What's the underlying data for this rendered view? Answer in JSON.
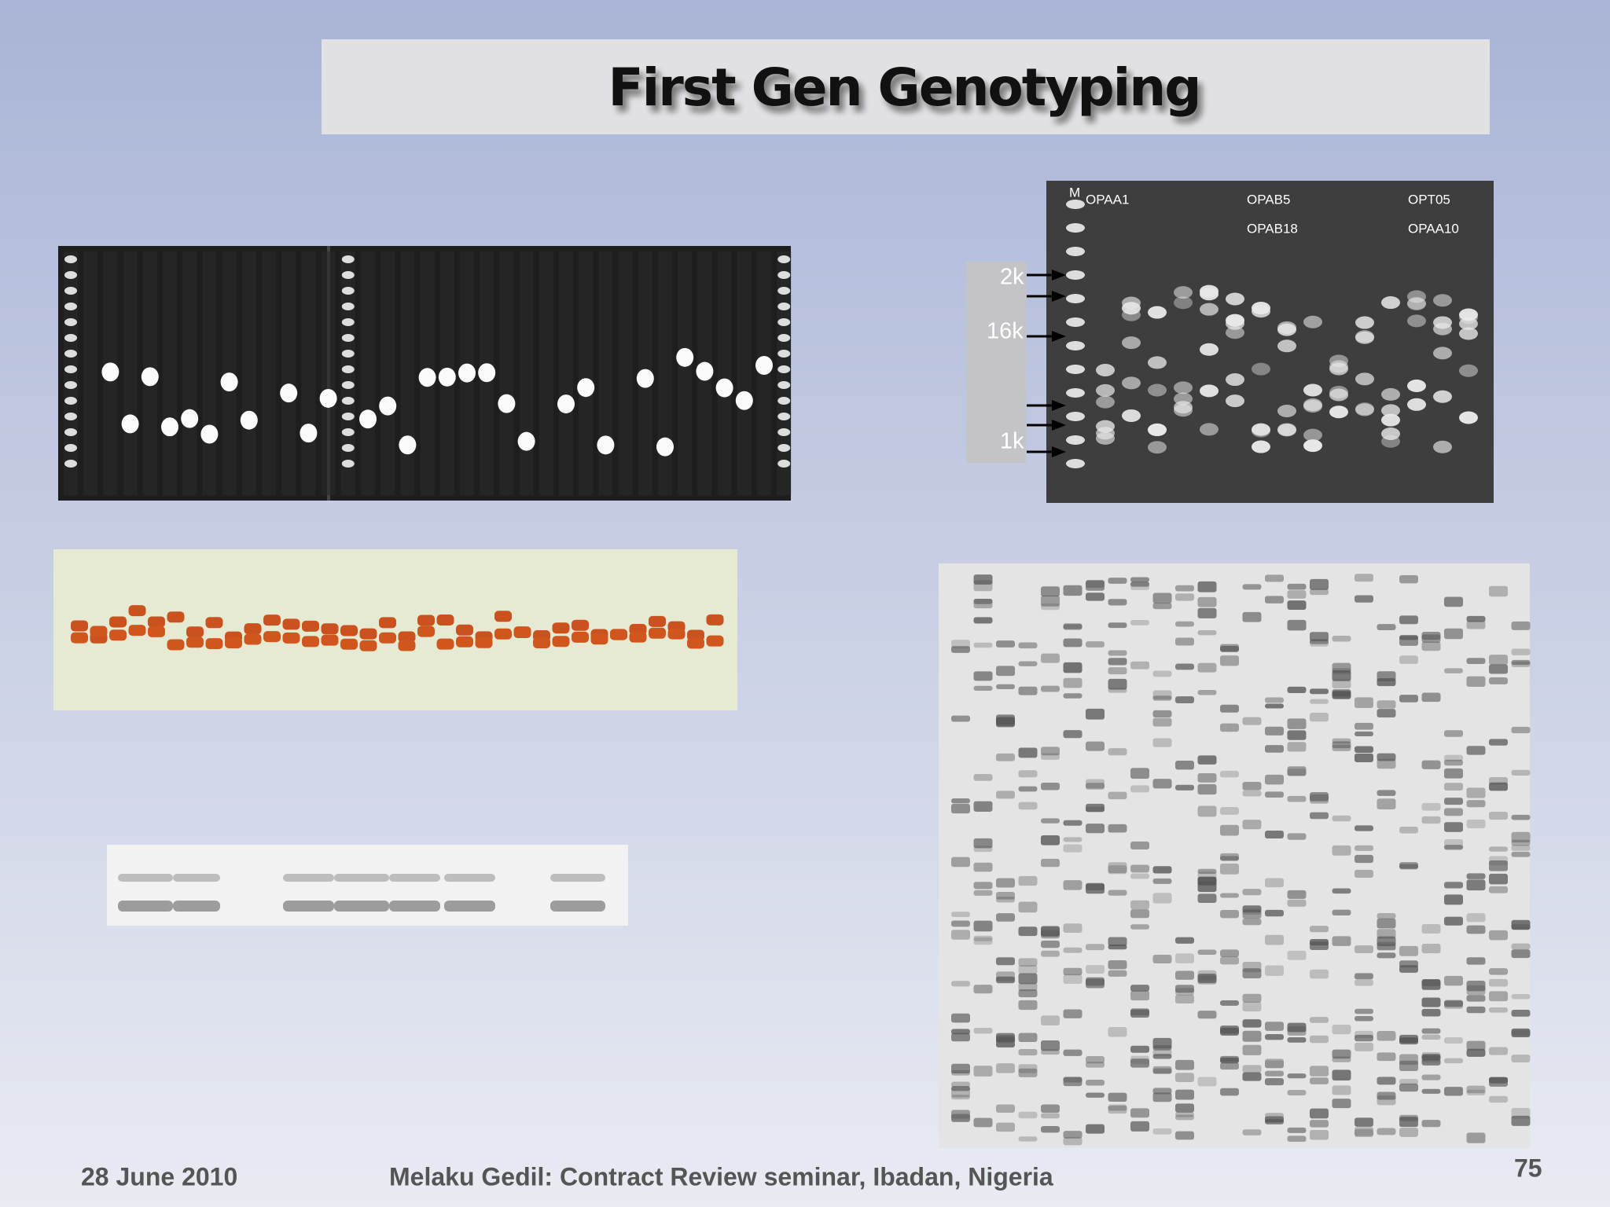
{
  "title": "First Gen Genotyping",
  "gel_labels": {
    "marker": "M",
    "primers": [
      "OPAA1",
      "OPAB5",
      "OPAB18",
      "OPT05",
      "OPAA10"
    ]
  },
  "size_labels": [
    "2k",
    "16k",
    "1k"
  ],
  "footer": {
    "date": "28 June 2010",
    "credit": "Melaku Gedil: Contract Review seminar,  Ibadan, Nigeria",
    "page": "75"
  }
}
